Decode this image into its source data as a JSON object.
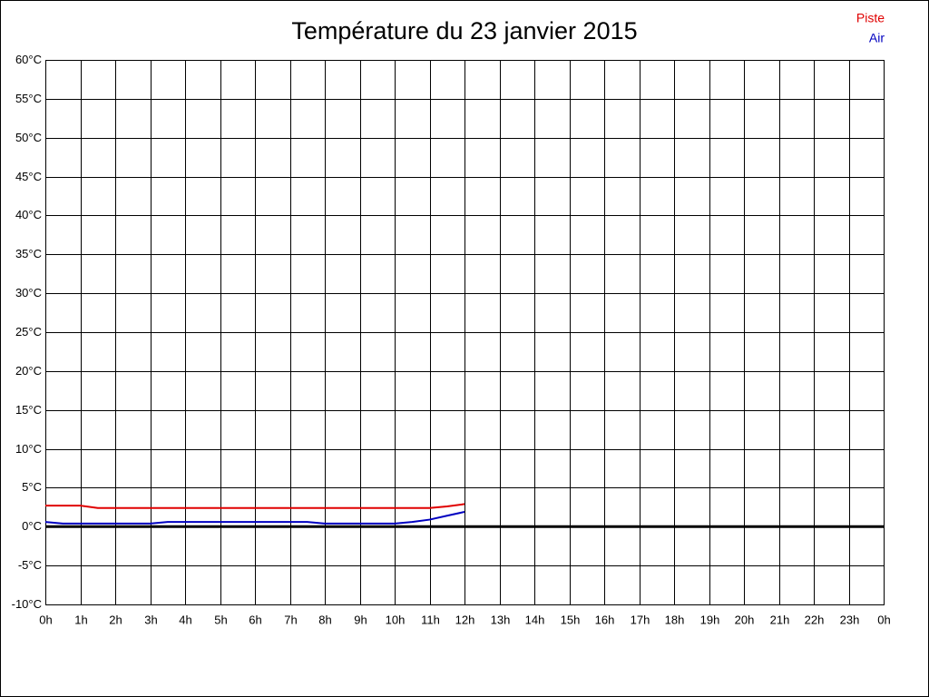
{
  "chart_data": {
    "type": "line",
    "title": "Température du 23 janvier 2015",
    "x": [
      0,
      0.5,
      1,
      1.5,
      2,
      2.5,
      3,
      3.5,
      4,
      4.5,
      5,
      5.5,
      6,
      6.5,
      7,
      7.5,
      8,
      8.5,
      9,
      9.5,
      10,
      10.5,
      11,
      11.5,
      12
    ],
    "series": [
      {
        "name": "Piste",
        "color": "#e00000",
        "values": [
          2.7,
          2.7,
          2.7,
          2.4,
          2.4,
          2.4,
          2.4,
          2.4,
          2.4,
          2.4,
          2.4,
          2.4,
          2.4,
          2.4,
          2.4,
          2.4,
          2.4,
          2.4,
          2.4,
          2.4,
          2.4,
          2.4,
          2.4,
          2.6,
          2.9
        ]
      },
      {
        "name": "Air",
        "color": "#0000c0",
        "values": [
          0.6,
          0.4,
          0.4,
          0.4,
          0.4,
          0.4,
          0.4,
          0.6,
          0.6,
          0.6,
          0.6,
          0.6,
          0.6,
          0.6,
          0.6,
          0.6,
          0.4,
          0.4,
          0.4,
          0.4,
          0.4,
          0.6,
          0.9,
          1.4,
          1.9
        ]
      }
    ],
    "xlim": [
      0,
      24
    ],
    "xticks": [
      {
        "value": 0,
        "label": "0h"
      },
      {
        "value": 1,
        "label": "1h"
      },
      {
        "value": 2,
        "label": "2h"
      },
      {
        "value": 3,
        "label": "3h"
      },
      {
        "value": 4,
        "label": "4h"
      },
      {
        "value": 5,
        "label": "5h"
      },
      {
        "value": 6,
        "label": "6h"
      },
      {
        "value": 7,
        "label": "7h"
      },
      {
        "value": 8,
        "label": "8h"
      },
      {
        "value": 9,
        "label": "9h"
      },
      {
        "value": 10,
        "label": "10h"
      },
      {
        "value": 11,
        "label": "11h"
      },
      {
        "value": 12,
        "label": "12h"
      },
      {
        "value": 13,
        "label": "13h"
      },
      {
        "value": 14,
        "label": "14h"
      },
      {
        "value": 15,
        "label": "15h"
      },
      {
        "value": 16,
        "label": "16h"
      },
      {
        "value": 17,
        "label": "17h"
      },
      {
        "value": 18,
        "label": "18h"
      },
      {
        "value": 19,
        "label": "19h"
      },
      {
        "value": 20,
        "label": "20h"
      },
      {
        "value": 21,
        "label": "21h"
      },
      {
        "value": 22,
        "label": "22h"
      },
      {
        "value": 23,
        "label": "23h"
      },
      {
        "value": 24,
        "label": "0h"
      }
    ],
    "ylim": [
      -10,
      60
    ],
    "yticks": [
      {
        "value": 60,
        "label": "60°C"
      },
      {
        "value": 55,
        "label": "55°C"
      },
      {
        "value": 50,
        "label": "50°C"
      },
      {
        "value": 45,
        "label": "45°C"
      },
      {
        "value": 40,
        "label": "40°C"
      },
      {
        "value": 35,
        "label": "35°C"
      },
      {
        "value": 30,
        "label": "30°C"
      },
      {
        "value": 25,
        "label": "25°C"
      },
      {
        "value": 20,
        "label": "20°C"
      },
      {
        "value": 15,
        "label": "15°C"
      },
      {
        "value": 10,
        "label": "10°C"
      },
      {
        "value": 5,
        "label": "5°C"
      },
      {
        "value": 0,
        "label": "0°C"
      },
      {
        "value": -5,
        "label": "-5°C"
      },
      {
        "value": -10,
        "label": "-10°C"
      }
    ],
    "grid": true,
    "legend": "top-right"
  }
}
